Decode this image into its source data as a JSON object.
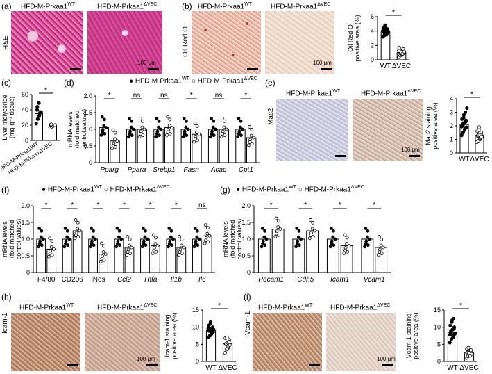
{
  "panels": {
    "a": {
      "letter": "(a)",
      "side_label": "H&E",
      "title_wt": "HFD-M-Prkaa1",
      "sup_wt": "WT",
      "title_ko": "HFD-M-Prkaa1",
      "sup_ko": "ΔVEC",
      "scale": "100 μm"
    },
    "b": {
      "letter": "(b)",
      "side_label": "Oil Red O",
      "title_wt": "HFD-M-Prkaa1",
      "sup_wt": "WT",
      "title_ko": "HFD-M-Prkaa1",
      "sup_ko": "ΔVEC",
      "scale": "100 μm"
    },
    "c": {
      "letter": "(c)"
    },
    "d": {
      "letter": "(d)"
    },
    "e": {
      "letter": "(e)",
      "side_label": "Mac2",
      "title_wt": "HFD-M-Prkaa1",
      "sup_wt": "WT",
      "title_ko": "HFD-M-Prkaa1",
      "sup_ko": "ΔVEC",
      "scale": "100 μm"
    },
    "f": {
      "letter": "(f)"
    },
    "g": {
      "letter": "(g)"
    },
    "h": {
      "letter": "(h)",
      "side_label": "Icam-1",
      "title_wt": "HFD-M-Prkaa1",
      "sup_wt": "WT",
      "title_ko": "HFD-M-Prkaa1",
      "sup_ko": "ΔVEC",
      "scale": "100 μm"
    },
    "i": {
      "letter": "(i)",
      "side_label": "Vcam-1",
      "title_wt": "HFD-M-Prkaa1",
      "sup_wt": "WT",
      "title_ko": "HFD-M-Prkaa1",
      "sup_ko": "ΔVEC",
      "scale": "100 μm"
    }
  },
  "legend": {
    "wt": "HFD-M-Prkaa1",
    "wt_sup": "WT",
    "ko": "HFD-M-Prkaa1",
    "ko_sup": "ΔVEC"
  },
  "colors": {
    "wt": "#000000",
    "ko": "#ffffff",
    "he": "#c8308a",
    "oil": "#e5b3a0"
  },
  "chart_data": [
    {
      "id": "b",
      "type": "scatter-bar",
      "ylabel": "Oil Red O\npositive area (%)",
      "categories": [
        "WT",
        "ΔVEC"
      ],
      "yticks": [
        0,
        2,
        4,
        6
      ],
      "ylim": [
        0,
        6
      ],
      "values": [
        3.9,
        1.0
      ],
      "errors": [
        0.35,
        0.25
      ],
      "points": [
        [
          3.2,
          3.4,
          3.6,
          3.7,
          3.8,
          3.9,
          4.0,
          4.1,
          4.2,
          4.3,
          4.4,
          4.6,
          4.8,
          3.5,
          3.95,
          4.05,
          3.75,
          4.25
        ],
        [
          0.4,
          0.6,
          0.7,
          0.8,
          0.9,
          1.0,
          1.1,
          1.2,
          1.3,
          1.5,
          1.7,
          0.95,
          1.05,
          0.85,
          1.15,
          1.25
        ]
      ],
      "sig": [
        "*"
      ]
    },
    {
      "id": "c",
      "type": "scatter-bar",
      "ylabel": "Liver triglyceride\n(mg·g⁻¹ tissue)",
      "categories": [
        "HFD-M-Prkaa1WT",
        "HFD-M-Prkaa1ΔVEC"
      ],
      "yticks": [
        0,
        20,
        40,
        60
      ],
      "ylim": [
        0,
        60
      ],
      "values": [
        35,
        19
      ],
      "errors": [
        4,
        1.5
      ],
      "points": [
        [
          22,
          28,
          32,
          35,
          37,
          40,
          44,
          49
        ],
        [
          17,
          18,
          19,
          19.5,
          20,
          20.5,
          21
        ]
      ],
      "sig": [
        "*"
      ]
    },
    {
      "id": "d",
      "type": "grouped-scatter-bar",
      "ylabel": "mRNA levels\n(fold matched\ncontrol values)",
      "categories": [
        "Pparg",
        "Ppara",
        "Srebp1",
        "Fasn",
        "Acac",
        "Cpt1"
      ],
      "yticks": [
        0,
        0.5,
        1.0,
        1.5,
        2.0
      ],
      "ylim": [
        0,
        2.0
      ],
      "series": [
        {
          "name": "HFD-M-Prkaa1WT",
          "values": [
            1.05,
            1.0,
            1.0,
            1.0,
            1.0,
            1.0
          ]
        },
        {
          "name": "HFD-M-Prkaa1ΔVEC",
          "values": [
            0.65,
            1.0,
            1.05,
            0.85,
            1.0,
            0.75
          ]
        }
      ],
      "sig": [
        "*",
        "ns",
        "ns",
        "*",
        "ns",
        "*"
      ]
    },
    {
      "id": "e",
      "type": "scatter-bar",
      "ylabel": "Mac2 staining\npositive area (%)",
      "categories": [
        "WT",
        "ΔVEC"
      ],
      "yticks": [
        0,
        1,
        2,
        3,
        4
      ],
      "ylim": [
        0,
        4
      ],
      "values": [
        2.1,
        1.3
      ],
      "errors": [
        0.2,
        0.12
      ],
      "points": [
        [
          1.3,
          1.5,
          1.7,
          1.8,
          1.9,
          2.0,
          2.1,
          2.2,
          2.3,
          2.4,
          2.5,
          2.6,
          2.8,
          3.0,
          3.3,
          1.95,
          2.15
        ],
        [
          0.8,
          0.9,
          1.0,
          1.1,
          1.2,
          1.25,
          1.3,
          1.35,
          1.4,
          1.5,
          1.6,
          1.7,
          1.9,
          1.15
        ]
      ],
      "sig": [
        "*"
      ]
    },
    {
      "id": "f",
      "type": "grouped-scatter-bar",
      "ylabel": "mRNA levels\n(fold matched\ncontrol values)",
      "categories": [
        "F4/80",
        "CD206",
        "iNos",
        "Ccl2",
        "Tnfa",
        "Il1b",
        "Il6"
      ],
      "yticks": [
        0,
        0.5,
        1.0,
        1.5,
        2.0
      ],
      "ylim": [
        0,
        2.0
      ],
      "series": [
        {
          "name": "HFD-M-Prkaa1WT",
          "values": [
            1.0,
            1.0,
            1.0,
            1.0,
            1.0,
            1.0,
            1.0
          ]
        },
        {
          "name": "HFD-M-Prkaa1ΔVEC",
          "values": [
            0.7,
            1.25,
            0.55,
            0.75,
            0.8,
            0.75,
            1.1
          ]
        }
      ],
      "sig": [
        "*",
        "*",
        "*",
        "*",
        "*",
        "*",
        "ns"
      ]
    },
    {
      "id": "g",
      "type": "grouped-scatter-bar",
      "ylabel": "mRNA levels\n(fold matched\ncontrol values)",
      "categories": [
        "Pecam1",
        "Cdh5",
        "Icam1",
        "Vcam1"
      ],
      "yticks": [
        0,
        0.5,
        1.0,
        1.5,
        2.0
      ],
      "ylim": [
        0,
        2.0
      ],
      "series": [
        {
          "name": "HFD-M-Prkaa1WT",
          "values": [
            1.0,
            1.0,
            1.0,
            1.0
          ]
        },
        {
          "name": "HFD-M-Prkaa1ΔVEC",
          "values": [
            1.3,
            1.25,
            0.8,
            0.75
          ]
        }
      ],
      "sig": [
        "*",
        "*",
        "*",
        "*"
      ]
    },
    {
      "id": "h",
      "type": "scatter-bar",
      "ylabel": "Icam-1 staining\npositive area (%)",
      "categories": [
        "WT",
        "ΔVEC"
      ],
      "yticks": [
        0,
        5,
        10,
        15
      ],
      "ylim": [
        0,
        15
      ],
      "values": [
        9.0,
        5.2
      ],
      "errors": [
        0.5,
        0.6
      ],
      "points": [
        [
          7.0,
          7.5,
          8.0,
          8.3,
          8.6,
          8.9,
          9.1,
          9.4,
          9.7,
          10.0,
          10.5,
          11.0,
          11.5,
          8.8,
          9.3,
          9.6
        ],
        [
          2.5,
          3.5,
          4.0,
          4.5,
          4.8,
          5.0,
          5.2,
          5.5,
          6.0,
          6.3,
          6.8,
          7.0,
          3.8,
          5.8
        ]
      ],
      "sig": [
        "*"
      ]
    },
    {
      "id": "i",
      "type": "scatter-bar",
      "ylabel": "Vcam-1 staining\npositive area (%)",
      "categories": [
        "WT",
        "ΔVEC"
      ],
      "yticks": [
        0,
        5,
        10,
        15
      ],
      "ylim": [
        0,
        15
      ],
      "values": [
        8.5,
        2.5
      ],
      "errors": [
        0.6,
        0.3
      ],
      "points": [
        [
          5.5,
          6.5,
          7.0,
          7.5,
          8.0,
          8.5,
          9.0,
          9.3,
          9.6,
          10.0,
          10.5,
          11.5,
          12.0,
          12.5,
          8.2,
          7.8
        ],
        [
          1.0,
          1.5,
          1.8,
          2.0,
          2.2,
          2.4,
          2.6,
          2.8,
          3.0,
          3.3,
          3.6,
          4.0,
          2.5,
          1.7
        ]
      ],
      "sig": [
        "*"
      ]
    }
  ]
}
